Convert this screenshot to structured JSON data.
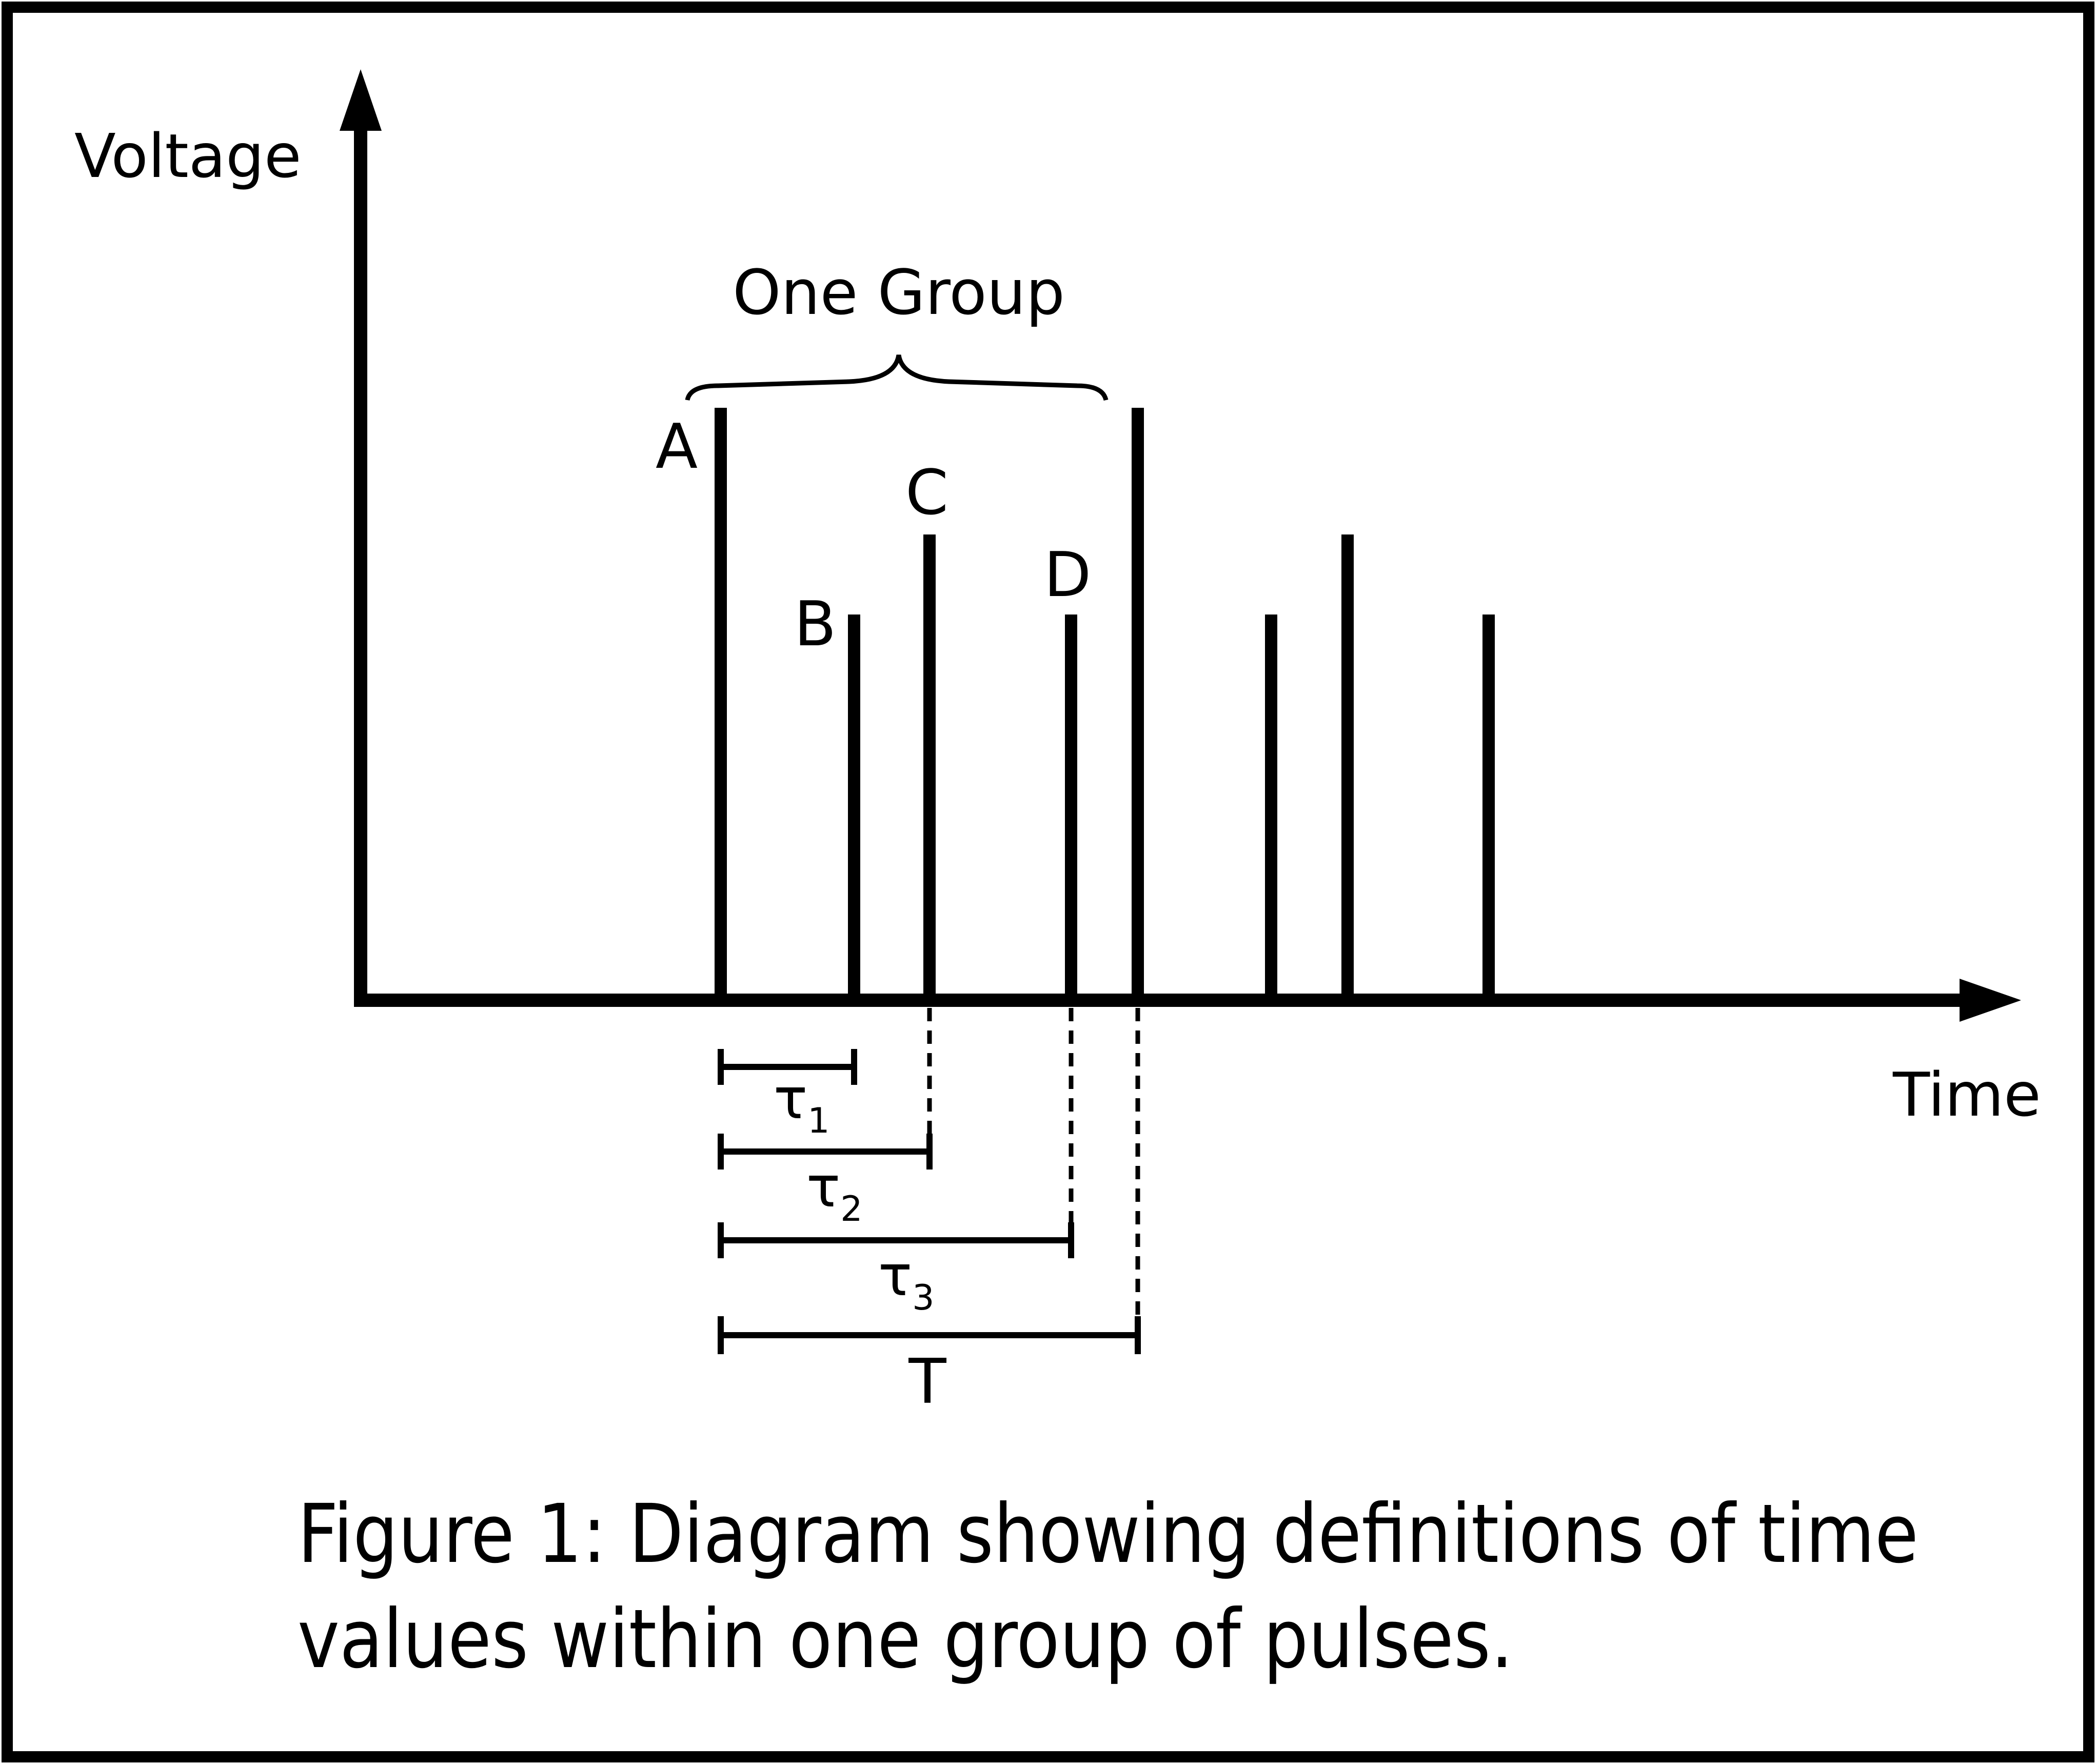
{
  "axes": {
    "y_label": "Voltage",
    "x_label": "Time"
  },
  "brace_label": "One Group",
  "pulse_labels": {
    "a": "A",
    "b": "B",
    "c": "C",
    "d": "D"
  },
  "intervals": {
    "tau1": {
      "symbol": "τ",
      "sub": "1"
    },
    "tau2": {
      "symbol": "τ",
      "sub": "2"
    },
    "tau3": {
      "symbol": "τ",
      "sub": "3"
    },
    "period": {
      "symbol": "T"
    }
  },
  "caption": {
    "line1": "Figure 1: Diagram showing definitions of time",
    "line2": "values within one group of pulses."
  }
}
